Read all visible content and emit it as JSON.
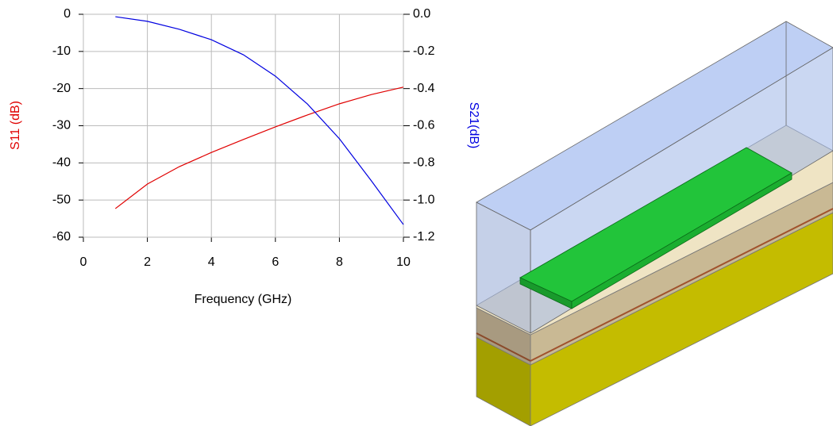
{
  "chart_data": {
    "type": "line",
    "x_label": "Frequency (GHz)",
    "y_label": "S11 (dB)",
    "y2_label": "S21(dB)",
    "x": [
      1,
      2,
      3,
      4,
      5,
      6,
      7,
      8,
      9,
      10
    ],
    "series": [
      {
        "color": "#e00000",
        "values": [
          -52.3,
          -45.7,
          -41.0,
          -37.2,
          -33.7,
          -30.3,
          -27.1,
          -24.1,
          -21.6,
          -19.6
        ]
      },
      {
        "color": "#0000e0",
        "axis": "y2",
        "values": [
          -0.013,
          -0.038,
          -0.081,
          -0.137,
          -0.218,
          -0.333,
          -0.483,
          -0.67,
          -0.897,
          -1.132
        ]
      }
    ],
    "xlim": [
      0,
      10
    ],
    "xticks": [
      0,
      2,
      4,
      6,
      8,
      10
    ],
    "ylim": [
      -60,
      0
    ],
    "yticks": [
      0,
      -10,
      -20,
      -30,
      -40,
      -50,
      -60
    ],
    "y2lim": [
      -1.2,
      0
    ],
    "y2ticks": [
      {
        "value": 0,
        "label": "0.0"
      },
      -0.2,
      -0.4,
      -0.6,
      -0.8,
      {
        "value": -1,
        "label": "-1.0"
      },
      -1.2
    ],
    "grid": true
  }
}
